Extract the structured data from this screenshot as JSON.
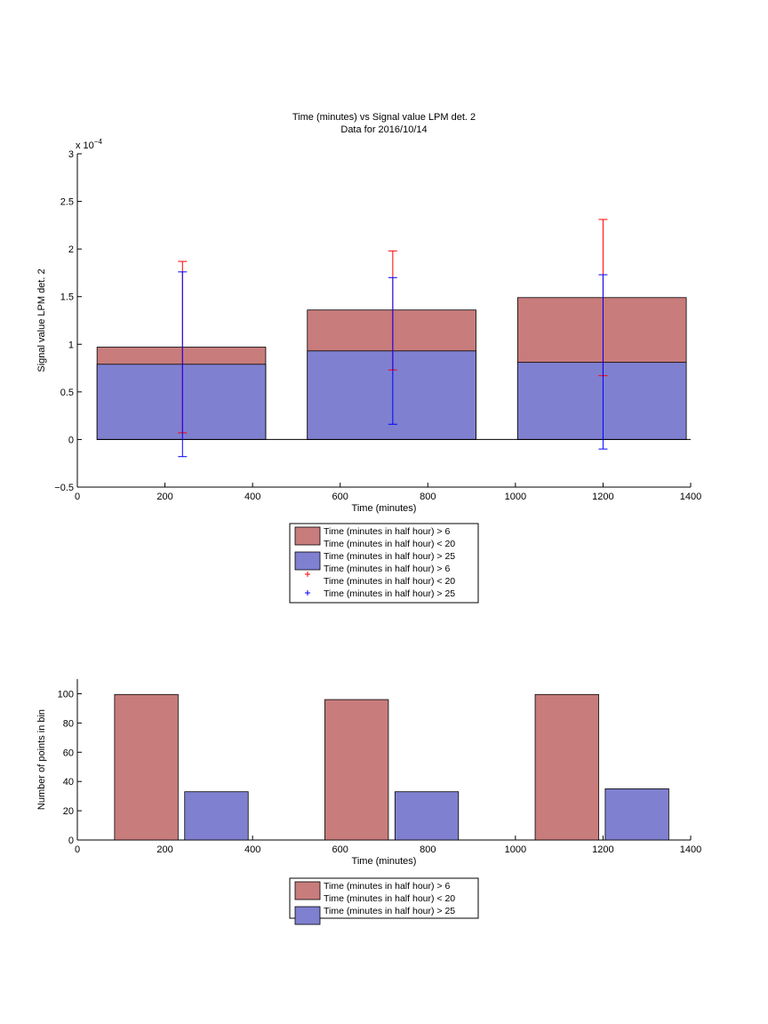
{
  "colors": {
    "red_fill": "#c87c7c",
    "blue_fill": "#8080d0",
    "red_err": "#ff0000",
    "blue_err": "#0000ff",
    "axis": "#000000"
  },
  "chart_data": [
    {
      "type": "bar",
      "title": "Time (minutes) vs Signal value LPM det. 2",
      "subtitle": "Data for 2016/10/14",
      "xlabel": "Time (minutes)",
      "ylabel": "Signal value LPM det. 2",
      "exponent_label": "x 10",
      "exponent_power": "−4",
      "xlim": [
        0,
        1400
      ],
      "ylim": [
        -0.5,
        3
      ],
      "xticks": [
        0,
        200,
        400,
        600,
        800,
        1000,
        1200,
        1400
      ],
      "yticks": [
        -0.5,
        0,
        0.5,
        1,
        1.5,
        2,
        2.5,
        3
      ],
      "bars": [
        {
          "x_start": 45,
          "x_end": 430,
          "red_top": 0.97,
          "blue_top": 0.79
        },
        {
          "x_start": 525,
          "x_end": 910,
          "red_top": 1.36,
          "blue_top": 0.93
        },
        {
          "x_start": 1005,
          "x_end": 1390,
          "red_top": 1.49,
          "blue_top": 0.81
        }
      ],
      "error_bars": [
        {
          "series": "red",
          "x": 240,
          "low": 0.07,
          "high": 1.87
        },
        {
          "series": "blue",
          "x": 240,
          "low": -0.18,
          "high": 1.76
        },
        {
          "series": "red",
          "x": 720,
          "low": 0.73,
          "high": 1.98
        },
        {
          "series": "blue",
          "x": 720,
          "low": 0.16,
          "high": 1.7
        },
        {
          "series": "red",
          "x": 1200,
          "low": 0.67,
          "high": 2.31
        },
        {
          "series": "blue",
          "x": 1200,
          "low": -0.1,
          "high": 1.73
        }
      ],
      "legend": {
        "placement": "below",
        "entries": [
          {
            "kind": "bar",
            "color": "red",
            "lines": [
              "Time (minutes in half hour) > 6",
              "Time (minutes in half hour) < 20"
            ]
          },
          {
            "kind": "bar",
            "color": "blue",
            "lines": [
              "Time (minutes in half hour) > 25"
            ]
          },
          {
            "kind": "marker",
            "color": "red",
            "lines": [
              "Time (minutes in half hour) > 6",
              "Time (minutes in half hour) < 20"
            ]
          },
          {
            "kind": "marker",
            "color": "blue",
            "lines": [
              "Time (minutes in half hour) > 25"
            ]
          }
        ]
      }
    },
    {
      "type": "bar",
      "title": "",
      "xlabel": "Time (minutes)",
      "ylabel": "Number of points in bin",
      "xlim": [
        0,
        1400
      ],
      "ylim": [
        0,
        110
      ],
      "xticks": [
        0,
        200,
        400,
        600,
        800,
        1000,
        1200,
        1400
      ],
      "yticks": [
        0,
        20,
        40,
        60,
        80,
        100
      ],
      "bars": [
        {
          "series": "red",
          "x_start": 85,
          "x_end": 230,
          "value": 99.5
        },
        {
          "series": "blue",
          "x_start": 245,
          "x_end": 390,
          "value": 33
        },
        {
          "series": "red",
          "x_start": 565,
          "x_end": 710,
          "value": 96
        },
        {
          "series": "blue",
          "x_start": 725,
          "x_end": 870,
          "value": 33
        },
        {
          "series": "red",
          "x_start": 1045,
          "x_end": 1190,
          "value": 99.5
        },
        {
          "series": "blue",
          "x_start": 1205,
          "x_end": 1350,
          "value": 35
        }
      ],
      "legend": {
        "placement": "below",
        "entries": [
          {
            "kind": "bar",
            "color": "red",
            "lines": [
              "Time (minutes in half hour) > 6",
              "Time (minutes in half hour) < 20"
            ]
          },
          {
            "kind": "bar",
            "color": "blue",
            "lines": [
              "Time (minutes in half hour) > 25"
            ]
          }
        ]
      }
    }
  ]
}
